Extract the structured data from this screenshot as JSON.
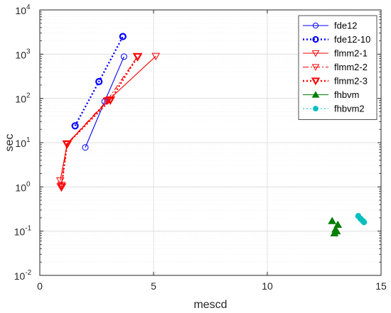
{
  "chart_data": {
    "type": "line",
    "xlabel": "mescd",
    "ylabel": "sec",
    "xlim": [
      0,
      15
    ],
    "ylim": [
      0.01,
      10000
    ],
    "yscale": "log",
    "grid": true,
    "legend_position": "top-right",
    "x_ticks": [
      {
        "value": 0,
        "label": "0"
      },
      {
        "value": 5,
        "label": "5"
      },
      {
        "value": 10,
        "label": "10"
      },
      {
        "value": 15,
        "label": "15"
      }
    ],
    "y_ticks": [
      {
        "value": 0.01,
        "base": "10",
        "exp": "-2"
      },
      {
        "value": 0.1,
        "base": "10",
        "exp": "-1"
      },
      {
        "value": 1,
        "base": "10",
        "exp": "0"
      },
      {
        "value": 10,
        "base": "10",
        "exp": "1"
      },
      {
        "value": 100,
        "base": "10",
        "exp": "2"
      },
      {
        "value": 1000,
        "base": "10",
        "exp": "3"
      },
      {
        "value": 10000,
        "base": "10",
        "exp": "4"
      }
    ],
    "series": [
      {
        "name": "fde12",
        "color": "#0000ff",
        "marker": "circle",
        "line": "solid",
        "bold": false,
        "points": [
          [
            2.0,
            7.8
          ],
          [
            2.85,
            85
          ],
          [
            3.7,
            880
          ]
        ]
      },
      {
        "name": "fde12-10",
        "color": "#0000ff",
        "marker": "circle",
        "line": "dotted",
        "bold": true,
        "points": [
          [
            1.55,
            24
          ],
          [
            2.6,
            240
          ],
          [
            3.65,
            2500
          ]
        ]
      },
      {
        "name": "flmm2-1",
        "color": "#ff0000",
        "marker": "triangle-down",
        "line": "solid",
        "bold": false,
        "points": [
          [
            0.9,
            1.4
          ],
          [
            1.2,
            9.2
          ],
          [
            3.0,
            90
          ],
          [
            5.1,
            900
          ]
        ]
      },
      {
        "name": "flmm2-2",
        "color": "#ff0000",
        "marker": "triangle-down",
        "line": "dashdot",
        "bold": false,
        "points": [
          [
            0.95,
            1.1
          ],
          [
            1.2,
            9.5
          ],
          [
            2.95,
            88
          ],
          [
            4.3,
            890
          ]
        ]
      },
      {
        "name": "flmm2-3",
        "color": "#ff0000",
        "marker": "triangle-down",
        "line": "dotted",
        "bold": true,
        "points": [
          [
            0.95,
            1.0
          ],
          [
            1.2,
            9.3
          ],
          [
            3.1,
            92
          ],
          [
            4.3,
            880
          ]
        ]
      },
      {
        "name": "fhbvm",
        "color": "#007f00",
        "marker": "triangle-up",
        "line": "solid",
        "bold": false,
        "scatter": true,
        "points": [
          [
            12.85,
            0.17
          ],
          [
            12.95,
            0.09
          ],
          [
            13.0,
            0.11
          ],
          [
            13.05,
            0.1
          ],
          [
            13.1,
            0.14
          ]
        ]
      },
      {
        "name": "fhbvm2",
        "color": "#00bfbf",
        "marker": "circle-filled",
        "line": "dotted",
        "bold": false,
        "scatter": true,
        "points": [
          [
            14.0,
            0.22
          ],
          [
            14.1,
            0.19
          ],
          [
            14.2,
            0.17
          ],
          [
            14.25,
            0.16
          ]
        ]
      }
    ]
  }
}
